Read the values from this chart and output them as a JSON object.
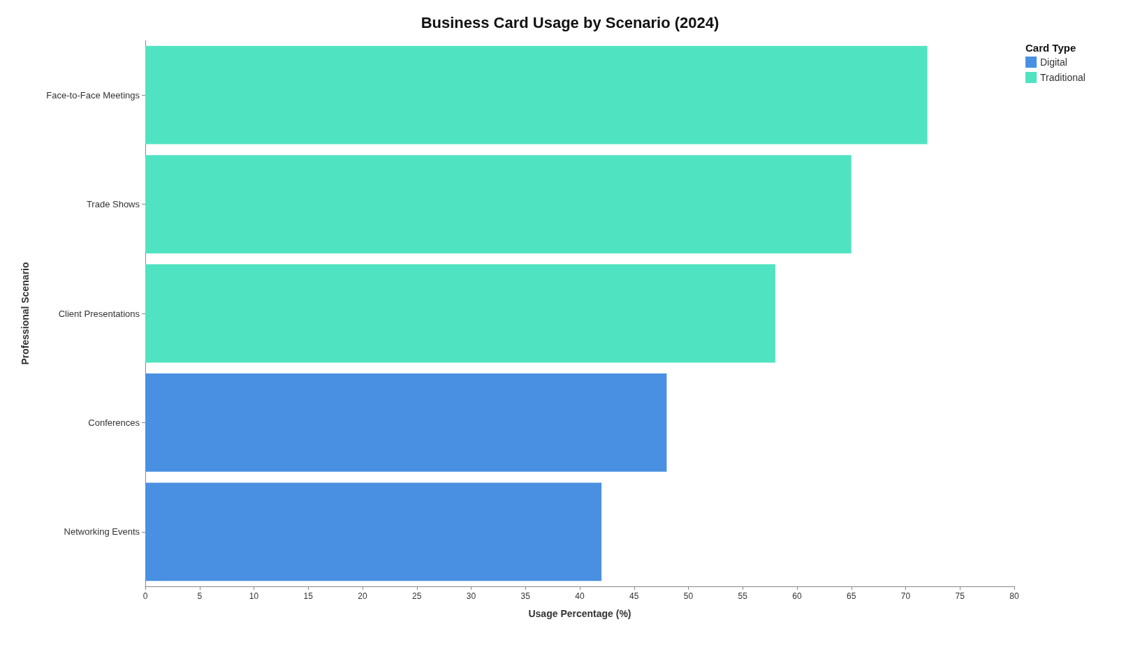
{
  "chart_data": {
    "type": "bar",
    "orientation": "horizontal",
    "stacked": true,
    "title": "Business Card Usage by Scenario (2024)",
    "xlabel": "Usage Percentage (%)",
    "ylabel": "Professional Scenario",
    "legend_title": "Card Type",
    "legend": "top right",
    "grid": false,
    "categories": [
      "Face-to-Face Meetings",
      "Trade Shows",
      "Client Presentations",
      "Conferences",
      "Networking Events"
    ],
    "series": [
      {
        "name": "Digital",
        "color": "#4a90e2",
        "values": [
          null,
          null,
          null,
          48,
          42
        ]
      },
      {
        "name": "Traditional",
        "color": "#50e3c2",
        "values": [
          72,
          65,
          58,
          null,
          null
        ]
      }
    ],
    "xlim": [
      0,
      80
    ],
    "xticks": [
      0,
      5,
      10,
      15,
      20,
      25,
      30,
      35,
      40,
      45,
      50,
      55,
      60,
      65,
      70,
      75,
      80
    ]
  }
}
